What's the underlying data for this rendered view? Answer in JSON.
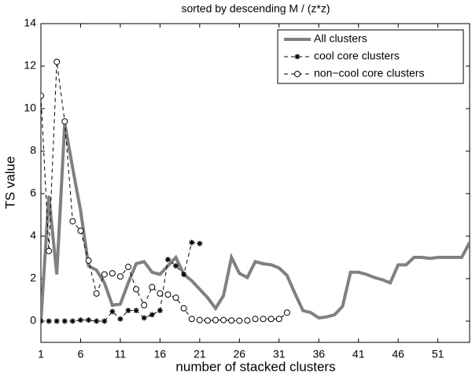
{
  "chart_data": {
    "type": "line",
    "title": "sorted by descending M / (z*z)",
    "xlabel": "number of stacked clusters",
    "ylabel": "TS value",
    "xlim": [
      1,
      55
    ],
    "ylim": [
      -1,
      14
    ],
    "xticks": [
      1,
      6,
      11,
      16,
      21,
      26,
      31,
      36,
      41,
      46,
      51
    ],
    "yticks": [
      0,
      2,
      4,
      6,
      8,
      10,
      12,
      14
    ],
    "legend": "upper right",
    "series": [
      {
        "name": "All clusters",
        "color": "#808080",
        "linestyle": "solid",
        "marker": "none",
        "x": [
          1,
          2,
          3,
          4,
          5,
          6,
          7,
          8,
          9,
          10,
          11,
          12,
          13,
          14,
          15,
          16,
          17,
          18,
          19,
          20,
          21,
          22,
          23,
          24,
          25,
          26,
          27,
          28,
          29,
          30,
          31,
          32,
          33,
          34,
          35,
          36,
          37,
          38,
          39,
          40,
          41,
          42,
          43,
          44,
          45,
          46,
          47,
          48,
          49,
          50,
          51,
          52,
          53,
          54,
          55
        ],
        "values": [
          0,
          5.9,
          2.2,
          9.3,
          7.2,
          5.2,
          2.6,
          2.4,
          1.8,
          0.75,
          0.8,
          1.8,
          2.7,
          2.8,
          2.3,
          2.2,
          2.6,
          3.0,
          2.2,
          1.9,
          1.5,
          1.1,
          0.6,
          1.2,
          3.0,
          2.25,
          2.05,
          2.8,
          2.7,
          2.65,
          2.5,
          2.15,
          1.3,
          0.5,
          0.4,
          0.15,
          0.2,
          0.3,
          0.7,
          2.3,
          2.3,
          2.2,
          2.05,
          1.95,
          1.8,
          2.65,
          2.65,
          3.0,
          3.0,
          2.95,
          3.0,
          3.0,
          3.0,
          3.0,
          3.7
        ]
      },
      {
        "name": "cool core clusters",
        "color": "#000000",
        "linestyle": "dashed",
        "marker": "*",
        "x": [
          1,
          2,
          3,
          4,
          5,
          6,
          7,
          8,
          9,
          10,
          11,
          12,
          13,
          14,
          15,
          16,
          17,
          18,
          19,
          20,
          21
        ],
        "values": [
          0,
          0,
          0,
          0,
          0,
          0.05,
          0.05,
          0,
          0,
          0.45,
          0.1,
          0.5,
          0.5,
          0.15,
          0.3,
          0.5,
          2.9,
          2.6,
          2.2,
          3.7,
          3.65
        ]
      },
      {
        "name": "non−cool core clusters",
        "color": "#000000",
        "linestyle": "dashed",
        "marker": "o",
        "x": [
          1,
          2,
          3,
          4,
          5,
          6,
          7,
          8,
          9,
          10,
          11,
          12,
          13,
          14,
          15,
          16,
          17,
          18,
          19,
          20,
          21,
          22,
          23,
          24,
          25,
          26,
          27,
          28,
          29,
          30,
          31,
          32
        ],
        "values": [
          10.6,
          3.3,
          12.2,
          9.4,
          4.7,
          4.25,
          2.85,
          1.3,
          2.2,
          2.25,
          2.1,
          2.55,
          1.5,
          0.75,
          1.6,
          1.3,
          1.25,
          1.1,
          0.6,
          0.1,
          0.05,
          0.03,
          0.05,
          0.05,
          0.03,
          0.02,
          0.03,
          0.1,
          0.1,
          0.1,
          0.1,
          0.4
        ]
      }
    ]
  }
}
